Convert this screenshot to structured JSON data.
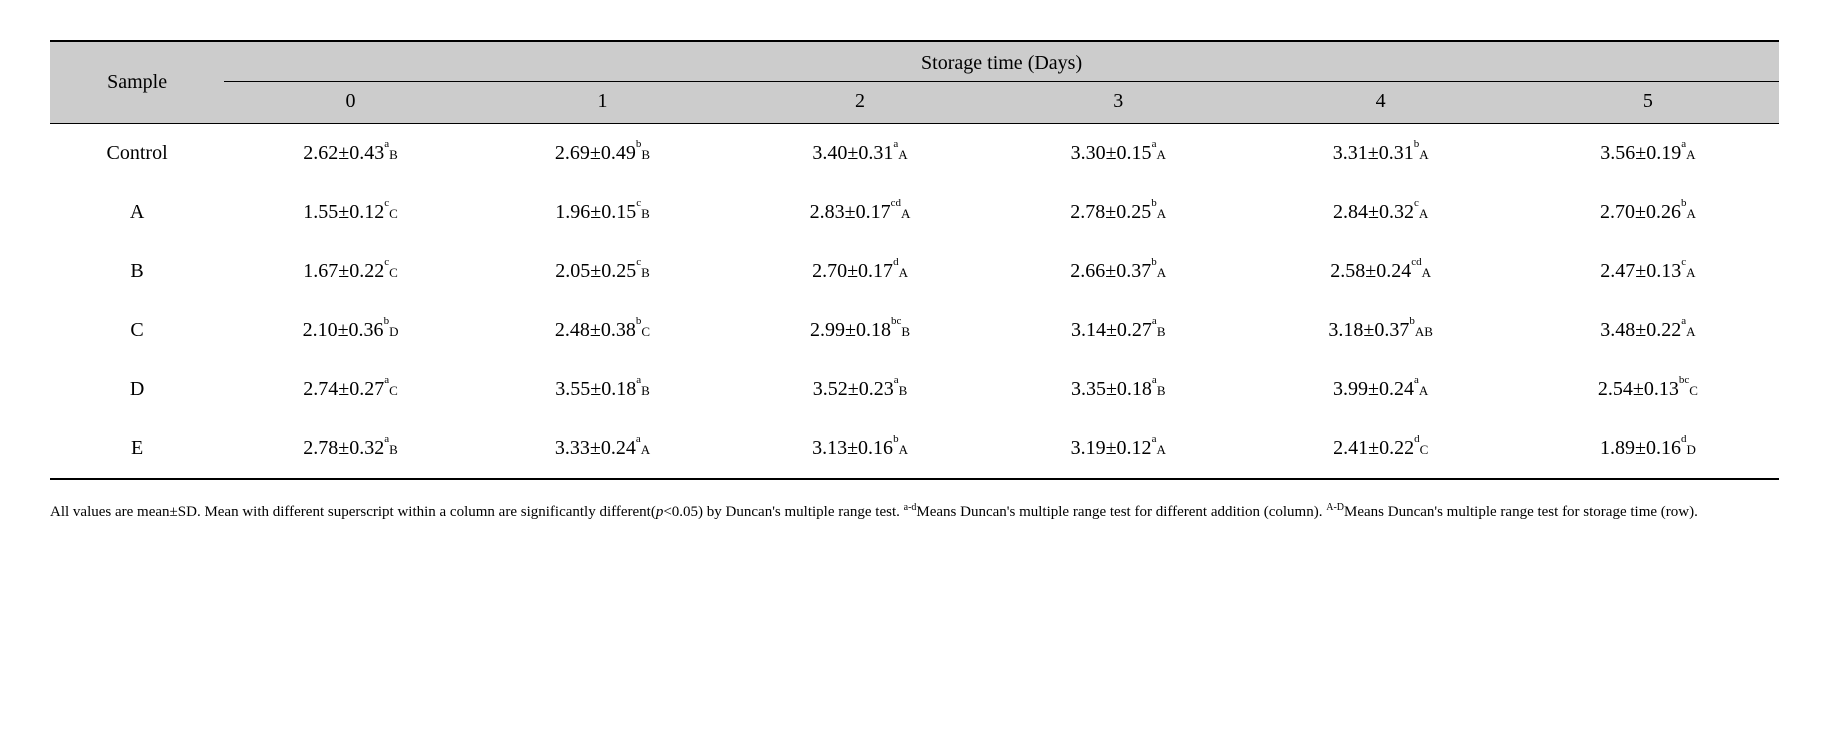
{
  "header": {
    "sample_label": "Sample",
    "storage_label": "Storage time (Days)",
    "days": [
      "0",
      "1",
      "2",
      "3",
      "4",
      "5"
    ]
  },
  "rows": [
    {
      "label": "Control",
      "cells": [
        {
          "val": "2.62±0.43",
          "c": "a",
          "r": "B"
        },
        {
          "val": "2.69±0.49",
          "c": "b",
          "r": "B"
        },
        {
          "val": "3.40±0.31",
          "c": "a",
          "r": "A"
        },
        {
          "val": "3.30±0.15",
          "c": "a",
          "r": "A"
        },
        {
          "val": "3.31±0.31",
          "c": "b",
          "r": "A"
        },
        {
          "val": "3.56±0.19",
          "c": "a",
          "r": "A"
        }
      ]
    },
    {
      "label": "A",
      "cells": [
        {
          "val": "1.55±0.12",
          "c": "c",
          "r": "C"
        },
        {
          "val": "1.96±0.15",
          "c": "c",
          "r": "B"
        },
        {
          "val": "2.83±0.17",
          "c": "cd",
          "r": "A"
        },
        {
          "val": "2.78±0.25",
          "c": "b",
          "r": "A"
        },
        {
          "val": "2.84±0.32",
          "c": "c",
          "r": "A"
        },
        {
          "val": "2.70±0.26",
          "c": "b",
          "r": "A"
        }
      ]
    },
    {
      "label": "B",
      "cells": [
        {
          "val": "1.67±0.22",
          "c": "c",
          "r": "C"
        },
        {
          "val": "2.05±0.25",
          "c": "c",
          "r": "B"
        },
        {
          "val": "2.70±0.17",
          "c": "d",
          "r": "A"
        },
        {
          "val": "2.66±0.37",
          "c": "b",
          "r": "A"
        },
        {
          "val": "2.58±0.24",
          "c": "cd",
          "r": "A"
        },
        {
          "val": "2.47±0.13",
          "c": "c",
          "r": "A"
        }
      ]
    },
    {
      "label": "C",
      "cells": [
        {
          "val": "2.10±0.36",
          "c": "b",
          "r": "D"
        },
        {
          "val": "2.48±0.38",
          "c": "b",
          "r": "C"
        },
        {
          "val": "2.99±0.18",
          "c": "bc",
          "r": "B"
        },
        {
          "val": "3.14±0.27",
          "c": "a",
          "r": "B"
        },
        {
          "val": "3.18±0.37",
          "c": "b",
          "r": "AB"
        },
        {
          "val": "3.48±0.22",
          "c": "a",
          "r": "A"
        }
      ]
    },
    {
      "label": "D",
      "cells": [
        {
          "val": "2.74±0.27",
          "c": "a",
          "r": "C"
        },
        {
          "val": "3.55±0.18",
          "c": "a",
          "r": "B"
        },
        {
          "val": "3.52±0.23",
          "c": "a",
          "r": "B"
        },
        {
          "val": "3.35±0.18",
          "c": "a",
          "r": "B"
        },
        {
          "val": "3.99±0.24",
          "c": "a",
          "r": "A"
        },
        {
          "val": "2.54±0.13",
          "c": "bc",
          "r": "C"
        }
      ]
    },
    {
      "label": "E",
      "cells": [
        {
          "val": "2.78±0.32",
          "c": "a",
          "r": "B"
        },
        {
          "val": "3.33±0.24",
          "c": "a",
          "r": "A"
        },
        {
          "val": "3.13±0.16",
          "c": "b",
          "r": "A"
        },
        {
          "val": "3.19±0.12",
          "c": "a",
          "r": "A"
        },
        {
          "val": "2.41±0.22",
          "c": "d",
          "r": "C"
        },
        {
          "val": "1.89±0.16",
          "c": "d",
          "r": "D"
        }
      ]
    }
  ],
  "footnote": {
    "part1": "All values are mean±SD. Mean with different superscript within a column are significantly different(",
    "p": "p",
    "part2": "<0.05) by Duncan's multiple range test. ",
    "sup1": "a-d",
    "part3": "Means Duncan's multiple range test for different addition (column). ",
    "sup2": "A-D",
    "part4": "Means Duncan's multiple range test for storage time (row)."
  },
  "style": {
    "header_bg": "#cccccc",
    "border_color": "#000000",
    "body_fontsize": 20,
    "sup_col_fontsize": 11,
    "sup_row_fontsize": 13,
    "footnote_fontsize": 15
  }
}
